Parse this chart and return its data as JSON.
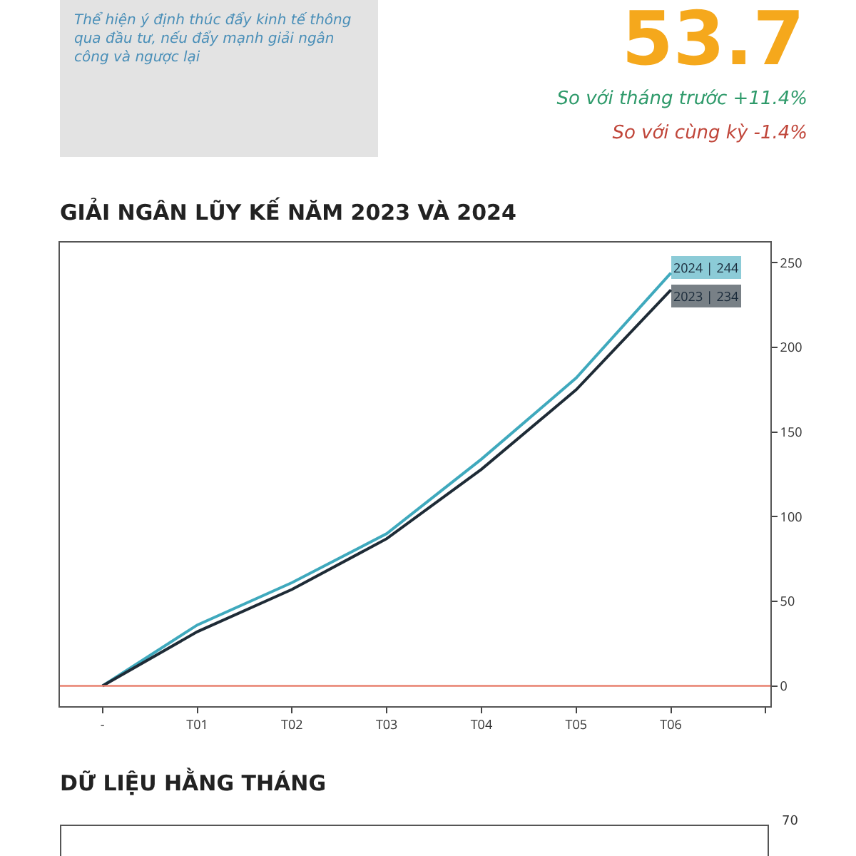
{
  "chart_data": [
    {
      "type": "other",
      "annotations": [
        "Thể hiện ý định thúc đẩy kinh tế thông qua đầu tư, nếu đẩy mạnh giải ngân công và ngược lại",
        "53.7",
        "So với tháng trước +11.4%",
        "So với cùng kỳ -1.4%"
      ]
    },
    {
      "type": "line",
      "title": "GIẢI NGÂN LŨY KẾ NĂM 2023 VÀ 2024",
      "categories": [
        "-",
        "T01",
        "T02",
        "T03",
        "T04",
        "T05",
        "T06",
        null
      ],
      "series": [
        {
          "color": "#3fa9bd",
          "values": [
            0,
            36,
            61,
            90,
            134,
            182,
            244,
            null
          ]
        },
        {
          "color": "#1e2b36",
          "values": [
            0,
            32,
            57,
            87,
            128,
            175,
            234,
            null
          ]
        }
      ],
      "annotations": [
        {
          "text": "2024 | 244",
          "x": "T06",
          "y": 244
        },
        {
          "text": "2023 | 234",
          "x": "T06",
          "y": 234
        }
      ],
      "ref_lines": [
        {
          "axis": "y",
          "value": 0,
          "color": "#e8806e"
        }
      ],
      "ylim": [
        -12,
        262
      ],
      "yticks": [
        0,
        50,
        100,
        150,
        200,
        250
      ],
      "grid": false,
      "marker": "none",
      "line_style": "solid"
    },
    {
      "type": "other",
      "title": "DỮ LIỆU HẰNG THÁNG",
      "annotations": [
        "70"
      ]
    }
  ]
}
